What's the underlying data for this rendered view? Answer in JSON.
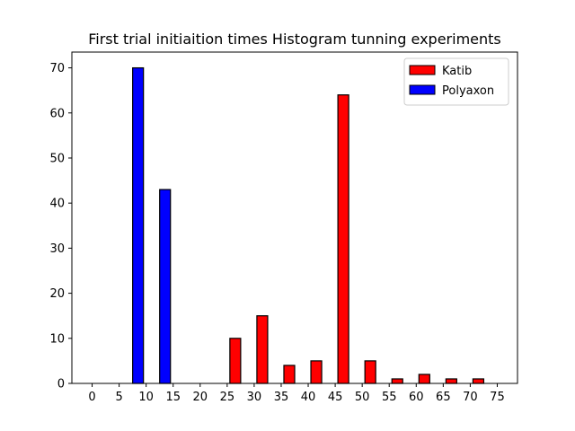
{
  "chart_data": {
    "type": "bar",
    "title": "First trial initiaition times Histogram tunning experiments",
    "xlabel": "",
    "ylabel": "",
    "xlim": [
      -3.75,
      78.75
    ],
    "ylim": [
      0,
      73.5
    ],
    "xticks": [
      0,
      5,
      10,
      15,
      20,
      25,
      30,
      35,
      40,
      45,
      50,
      55,
      60,
      65,
      70,
      75
    ],
    "yticks": [
      0,
      10,
      20,
      30,
      40,
      50,
      60,
      70
    ],
    "bin_edges": [
      0,
      5,
      10,
      15,
      20,
      25,
      30,
      35,
      40,
      45,
      50,
      55,
      60,
      65,
      70,
      75
    ],
    "legend_position": "top-right",
    "grid": false,
    "series": [
      {
        "name": "Katib",
        "color": "#ff0000",
        "values": [
          0,
          0,
          0,
          0,
          0,
          10,
          15,
          4,
          5,
          64,
          5,
          1,
          2,
          1,
          1
        ]
      },
      {
        "name": "Polyaxon",
        "color": "#0000ff",
        "values": [
          0,
          70,
          43,
          0,
          0,
          0,
          0,
          0,
          0,
          0,
          0,
          0,
          0,
          0,
          0
        ]
      }
    ]
  }
}
